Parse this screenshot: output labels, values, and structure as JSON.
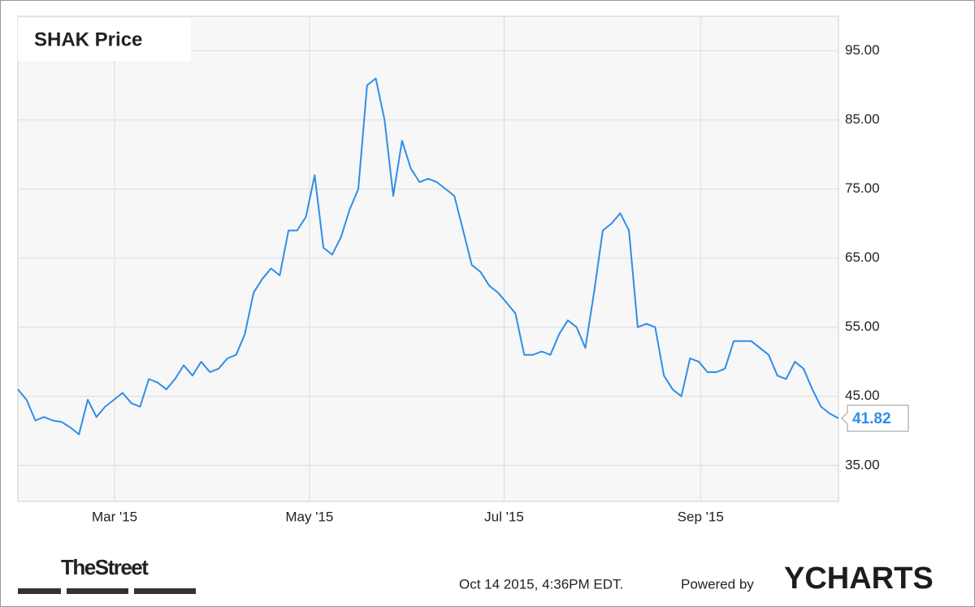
{
  "chart_data": {
    "type": "line",
    "title": "SHAK Price",
    "values": [
      46,
      44.5,
      41.5,
      42,
      41.5,
      41.3,
      40.5,
      39.5,
      44.5,
      42,
      43.5,
      44.5,
      45.5,
      44,
      43.5,
      47.5,
      47,
      46,
      47.5,
      49.5,
      48,
      50,
      48.5,
      49,
      50.5,
      51,
      54,
      60,
      62,
      63.5,
      62.5,
      69,
      69,
      71,
      77,
      66.5,
      65.5,
      68,
      72,
      75,
      90,
      91,
      85,
      74,
      82,
      78,
      76,
      76.5,
      76,
      75,
      74,
      69,
      64,
      63,
      61,
      60,
      58.5,
      57,
      51,
      51,
      51.5,
      51,
      54,
      56,
      55,
      52,
      60,
      69,
      70,
      71.5,
      69,
      55,
      55.5,
      55,
      48,
      46,
      45,
      50.5,
      50,
      48.5,
      48.5,
      49,
      53,
      53,
      53,
      52,
      51,
      48,
      47.5,
      50,
      49,
      46,
      43.5,
      42.5,
      41.82
    ],
    "color": "#2f8ee8",
    "xlim": [
      0,
      94
    ],
    "xticks": [
      {
        "value": 11.08,
        "label": "Mar '15"
      },
      {
        "value": 33.4,
        "label": "May '15"
      },
      {
        "value": 55.7,
        "label": "Jul '15"
      },
      {
        "value": 78.2,
        "label": "Sep '15"
      }
    ],
    "ylim": [
      29.8,
      100
    ],
    "yticks": [
      {
        "value": 35,
        "label": "35.00"
      },
      {
        "value": 45,
        "label": "45.00"
      },
      {
        "value": 55,
        "label": "55.00"
      },
      {
        "value": 65,
        "label": "65.00"
      },
      {
        "value": 75,
        "label": "75.00"
      },
      {
        "value": 85,
        "label": "85.00"
      },
      {
        "value": 95,
        "label": "95.00"
      }
    ],
    "grid": true,
    "source": "TheStreet",
    "timestamp": "Oct 14 2015, 4:36PM EDT.",
    "powered_by": "Powered by",
    "brand": "YCHARTS"
  }
}
